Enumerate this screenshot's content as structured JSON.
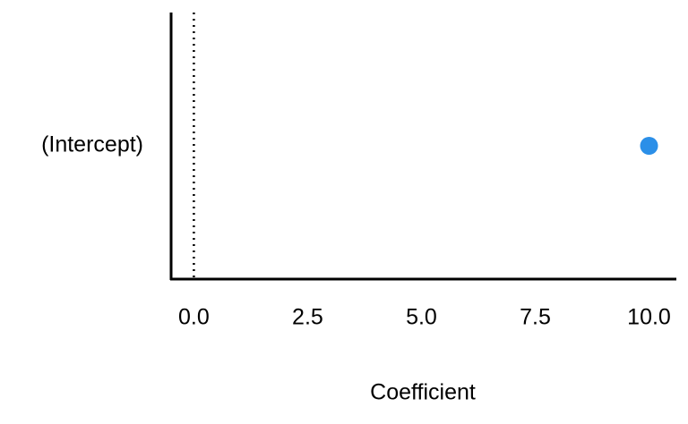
{
  "chart_data": {
    "type": "dot",
    "x_label": "Coefficient",
    "categories": [
      "(Intercept)"
    ],
    "values": [
      10.0
    ],
    "color": "#2b8fe8",
    "reference_line": 0,
    "xlim": [
      -0.5,
      10.6
    ],
    "xticks": [
      {
        "value": 0,
        "label": "0.0"
      },
      {
        "value": 2.5,
        "label": "2.5"
      },
      {
        "value": 5,
        "label": "5.0"
      },
      {
        "value": 7.5,
        "label": "7.5"
      },
      {
        "value": 10,
        "label": "10.0"
      }
    ]
  }
}
